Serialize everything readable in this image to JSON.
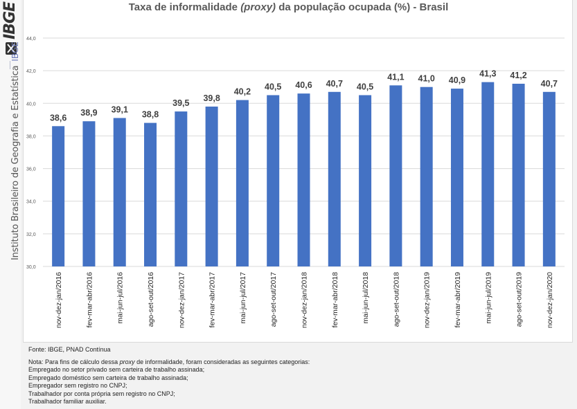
{
  "sidebar": {
    "logo_text": "IBGE",
    "institution": "Instituto Brasileiro de Geografia e Estatística",
    "abbreviation": "IBGE"
  },
  "chart_data": {
    "type": "bar",
    "title_parts": [
      "Taxa de informalidade ",
      "(proxy)",
      " da população ocupada (%) - Brasil"
    ],
    "title": "Taxa de informalidade (proxy) da população ocupada (%) - Brasil",
    "xlabel": "",
    "ylabel": "",
    "ylim": [
      30,
      44
    ],
    "yticks": [
      30,
      32,
      34,
      36,
      38,
      40,
      42,
      44
    ],
    "ytick_labels": [
      "30,0",
      "32,0",
      "34,0",
      "36,0",
      "38,0",
      "40,0",
      "42,0",
      "44,0"
    ],
    "grid": true,
    "legend": "none",
    "bar_color": "#4472C4",
    "categories": [
      "nov-dez-jan/2016",
      "fev-mar-abr/2016",
      "mai-jun-jul/2016",
      "ago-set-out/2016",
      "nov-dez-jan/2017",
      "fev-mar-abr/2017",
      "mai-jun-jul/2017",
      "ago-set-out/2017",
      "nov-dez-jan/2018",
      "fev-mar-abr/2018",
      "mai-jun-jul/2018",
      "ago-set-out/2018",
      "nov-dez-jan/2019",
      "fev-mar-abr/2019",
      "mai-jun-jul/2019",
      "ago-set-out/2019",
      "nov-dez-jan/2020"
    ],
    "values": [
      38.6,
      38.9,
      39.1,
      38.8,
      39.5,
      39.8,
      40.2,
      40.5,
      40.6,
      40.7,
      40.5,
      41.1,
      41.0,
      40.9,
      41.3,
      41.2,
      40.7
    ],
    "value_labels": [
      "38,6",
      "38,9",
      "39,1",
      "38,8",
      "39,5",
      "39,8",
      "40,2",
      "40,5",
      "40,6",
      "40,7",
      "40,5",
      "41,1",
      "41,0",
      "40,9",
      "41,3",
      "41,2",
      "40,7"
    ]
  },
  "footer": {
    "source": "Fonte: IBGE, PNAD Contínua",
    "note_prefix": "Nota: Para fins de cálculo dessa ",
    "note_italic": "proxy",
    "note_suffix": " de informalidade, foram consideradas as seguintes categorias:",
    "categories": [
      "Empregado no setor privado sem carteira de trabalho assinada;",
      "Empregado doméstico sem carteira de trabalho assinada;",
      "Empregador sem registro no CNPJ;",
      "Trabalhador por conta própria sem registro no CNPJ;",
      "Trabalhador familiar auxiliar."
    ]
  }
}
